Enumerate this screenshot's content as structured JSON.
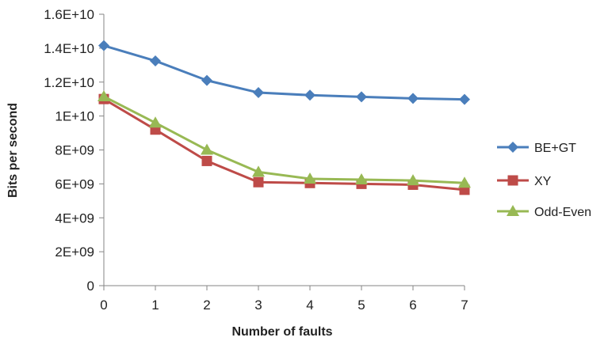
{
  "chart_data": {
    "type": "line",
    "title": "",
    "xlabel": "Number of faults",
    "ylabel": "Bits per second",
    "x": [
      0,
      1,
      2,
      3,
      4,
      5,
      6,
      7
    ],
    "x_tick_labels": [
      "0",
      "1",
      "2",
      "3",
      "4",
      "5",
      "6",
      "7"
    ],
    "ylim": [
      0,
      16000000000
    ],
    "y_ticks": [
      0,
      2000000000,
      4000000000,
      6000000000,
      8000000000,
      10000000000,
      12000000000,
      14000000000,
      16000000000
    ],
    "y_tick_labels": [
      "0",
      "2E+09",
      "4E+09",
      "6E+09",
      "8E+09",
      "1E+10",
      "1.2E+10",
      "1.4E+10",
      "1.6E+10"
    ],
    "grid": false,
    "legend_position": "right",
    "series": [
      {
        "name": "BE+GT",
        "color": "#4a7ebb",
        "marker": "diamond",
        "values": [
          14150000000,
          13250000000,
          12100000000,
          11380000000,
          11230000000,
          11130000000,
          11040000000,
          10980000000
        ]
      },
      {
        "name": "XY",
        "color": "#be4b48",
        "marker": "square",
        "values": [
          11000000000,
          9200000000,
          7350000000,
          6100000000,
          6050000000,
          6000000000,
          5950000000,
          5650000000
        ]
      },
      {
        "name": "Odd-Even",
        "color": "#98b954",
        "marker": "triangle",
        "values": [
          11150000000,
          9600000000,
          8000000000,
          6700000000,
          6300000000,
          6250000000,
          6200000000,
          6050000000
        ]
      }
    ]
  }
}
